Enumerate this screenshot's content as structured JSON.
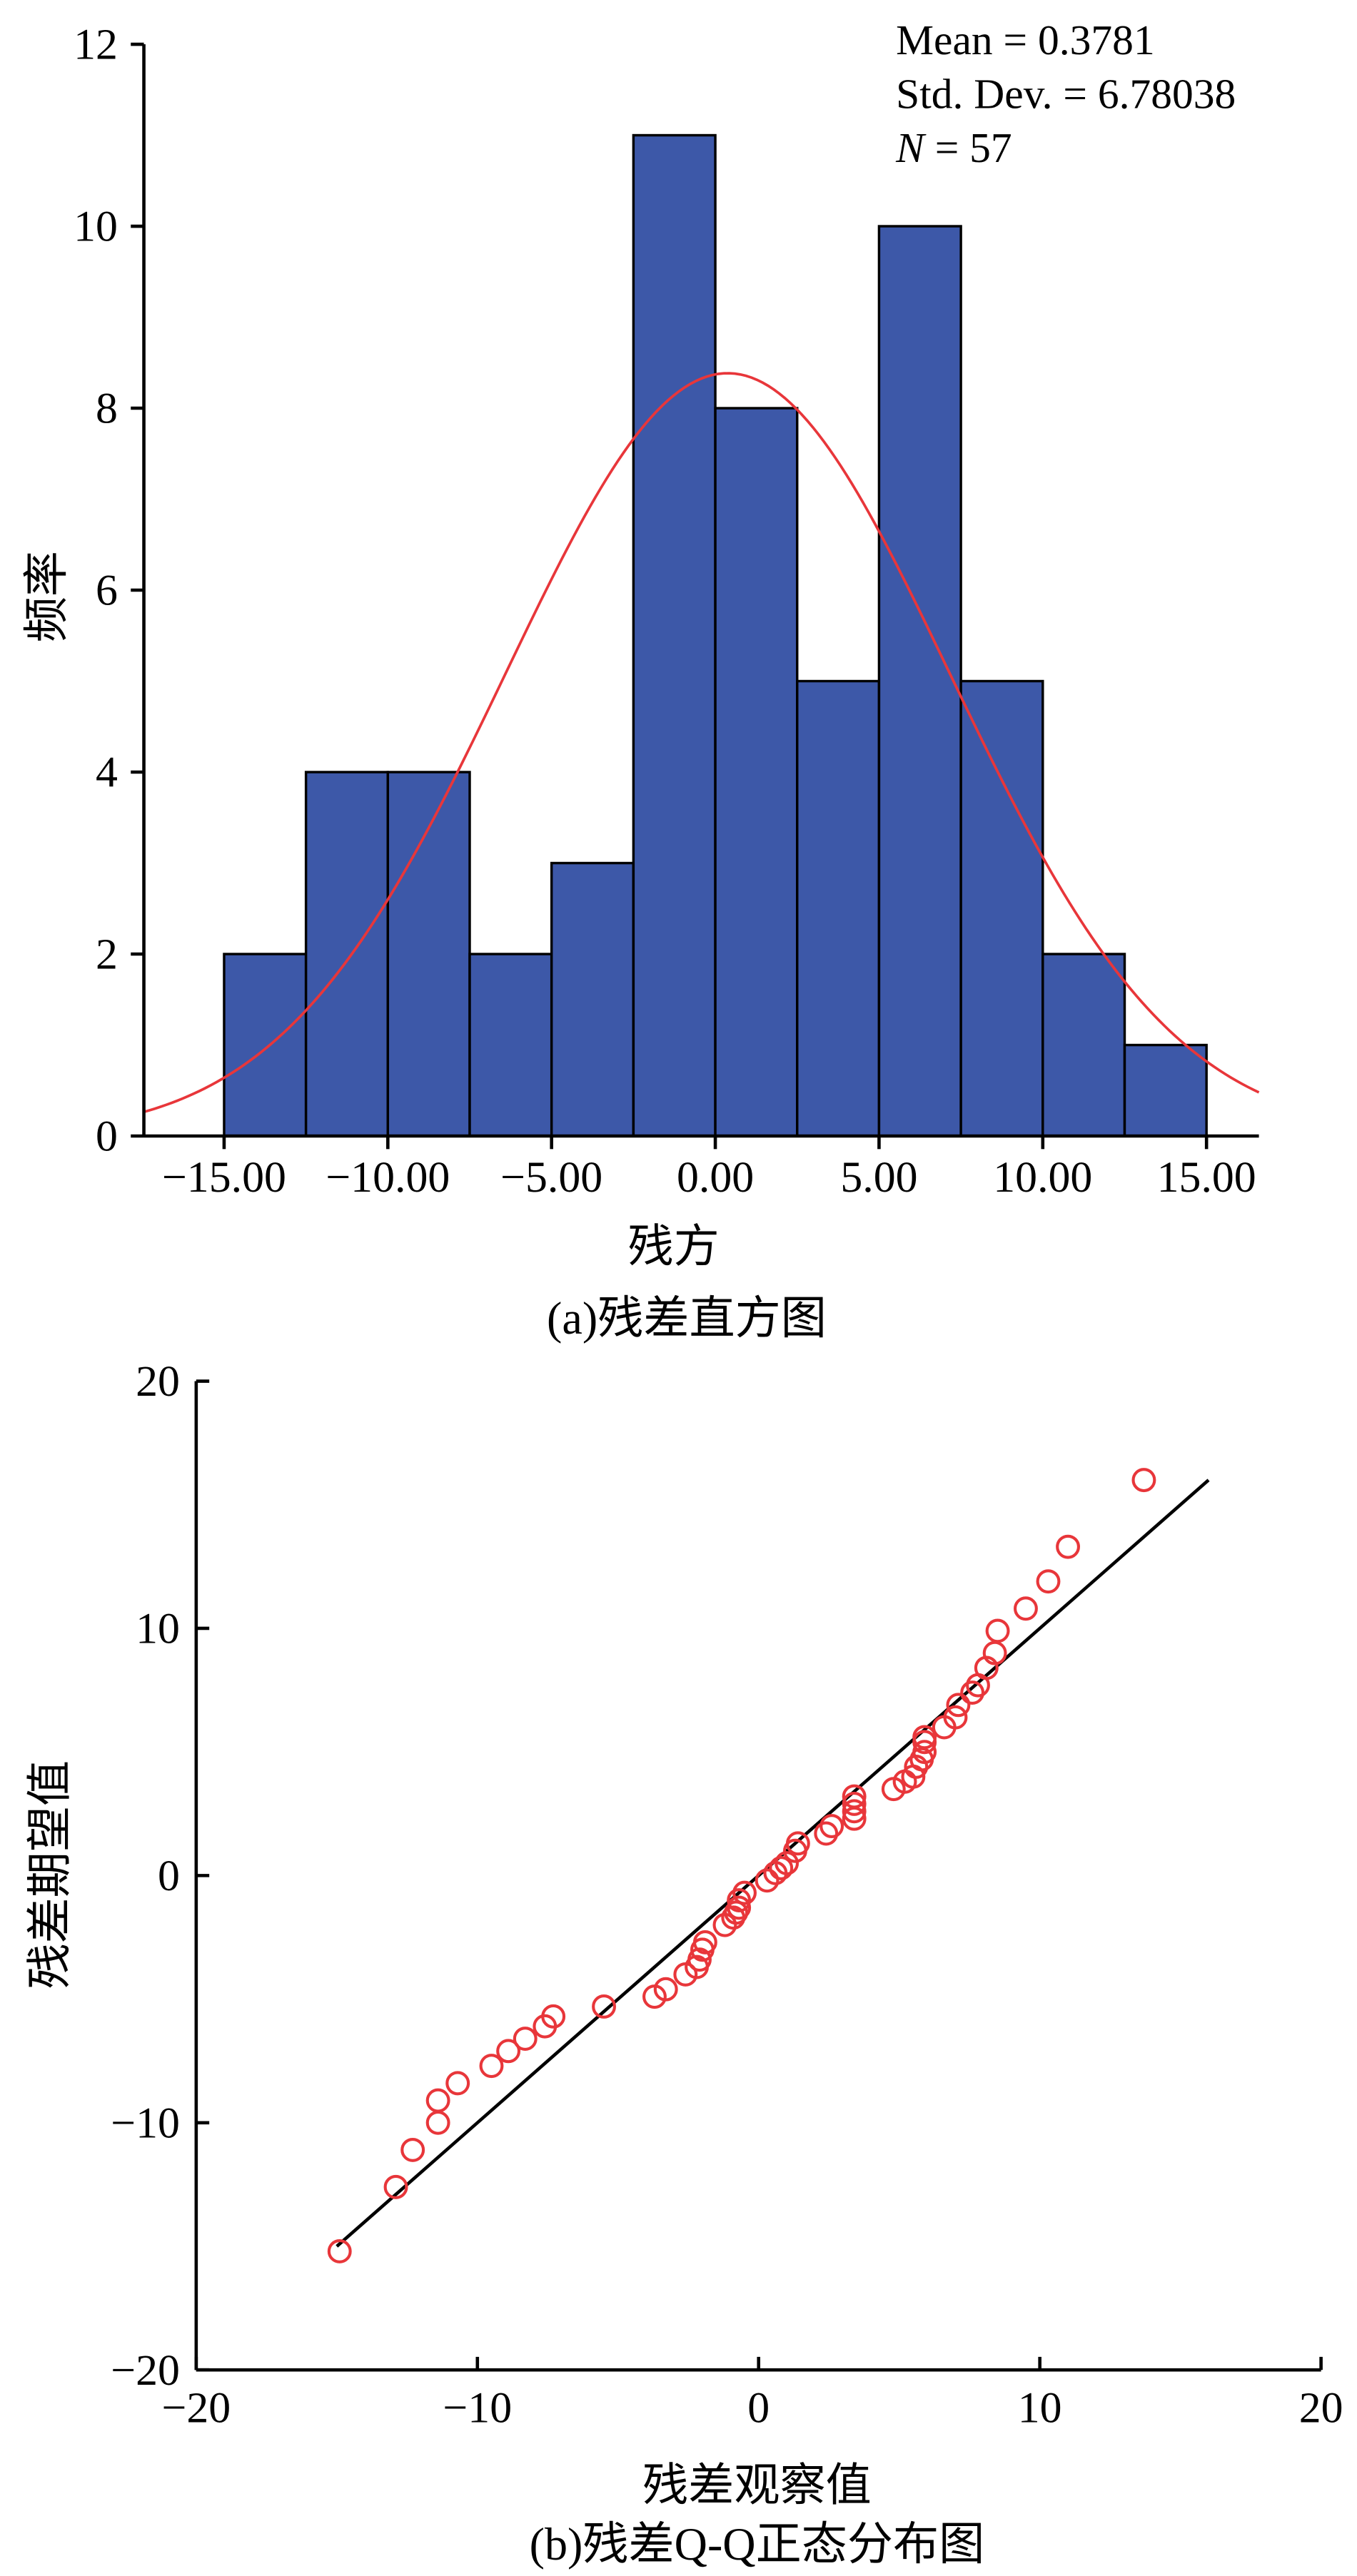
{
  "chart_data": [
    {
      "type": "bar",
      "subtype": "histogram",
      "caption": "(a)残差直方图",
      "xlabel": "残方",
      "ylabel": "频率",
      "bin_edges": [
        -15,
        -12.5,
        -10,
        -7.5,
        -5,
        -2.5,
        0,
        2.5,
        5,
        7.5,
        10,
        12.5,
        15
      ],
      "values": [
        2,
        4,
        4,
        2,
        3,
        11,
        8,
        5,
        10,
        5,
        2,
        1
      ],
      "xlim": [
        -17.45,
        16.6
      ],
      "ylim": [
        0,
        12
      ],
      "xticks": [
        -15,
        -10,
        -5,
        0,
        5,
        10,
        15
      ],
      "xtick_labels": [
        "−15.00",
        "−10.00",
        "−5.00",
        "0.00",
        "5.00",
        "10.00",
        "15.00"
      ],
      "yticks": [
        0,
        2,
        4,
        6,
        8,
        10,
        12
      ],
      "ytick_labels": [
        "0",
        "2",
        "4",
        "6",
        "8",
        "10",
        "12"
      ],
      "stats": {
        "mean_label": "Mean = 0.3781",
        "sd_label": "Std. Dev. = 6.78038",
        "n_label_italic": "N",
        "n_label_rest": " = 57"
      },
      "normal_curve": {
        "mean": 0.3781,
        "sd": 6.78038,
        "n": 57,
        "color": "#e8363a"
      },
      "bar_color": "#3d58a8",
      "grid": false
    },
    {
      "type": "scatter",
      "caption": "(b)残差Q-Q正态分布图",
      "xlabel": "残差观察值",
      "ylabel": "残差期望值",
      "xlim": [
        -20,
        20
      ],
      "ylim": [
        -20,
        20
      ],
      "xticks": [
        -20,
        -10,
        0,
        10,
        20
      ],
      "xtick_labels": [
        "−20",
        "−10",
        "0",
        "10",
        "20"
      ],
      "yticks": [
        -20,
        -10,
        0,
        10,
        20
      ],
      "ytick_labels": [
        "−20",
        "−10",
        "0",
        "10",
        "20"
      ],
      "marker_color": "#e8363a",
      "reference_line": {
        "x": [
          -15,
          16
        ],
        "y": [
          -15,
          16
        ],
        "color": "#000000"
      },
      "points": [
        [
          -14.9,
          -15.2
        ],
        [
          -12.9,
          -12.6
        ],
        [
          -12.3,
          -11.1
        ],
        [
          -11.4,
          -10.0
        ],
        [
          -11.4,
          -9.1
        ],
        [
          -10.7,
          -8.4
        ],
        [
          -9.5,
          -7.7
        ],
        [
          -8.9,
          -7.1
        ],
        [
          -8.3,
          -6.6
        ],
        [
          -7.6,
          -6.1
        ],
        [
          -7.3,
          -5.7
        ],
        [
          -5.5,
          -5.3
        ],
        [
          -3.7,
          -4.9
        ],
        [
          -3.3,
          -4.6
        ],
        [
          -2.6,
          -4.0
        ],
        [
          -2.2,
          -3.7
        ],
        [
          -2.1,
          -3.4
        ],
        [
          -2.0,
          -3.0
        ],
        [
          -1.9,
          -2.7
        ],
        [
          -1.2,
          -2.0
        ],
        [
          -0.9,
          -1.7
        ],
        [
          -0.8,
          -1.5
        ],
        [
          -0.7,
          -1.3
        ],
        [
          -0.7,
          -1.0
        ],
        [
          -0.5,
          -0.7
        ],
        [
          0.3,
          -0.2
        ],
        [
          0.6,
          0.1
        ],
        [
          0.8,
          0.3
        ],
        [
          1.0,
          0.5
        ],
        [
          1.3,
          1.0
        ],
        [
          1.4,
          1.3
        ],
        [
          2.4,
          1.7
        ],
        [
          2.6,
          2.0
        ],
        [
          3.4,
          2.3
        ],
        [
          3.4,
          2.6
        ],
        [
          3.4,
          2.9
        ],
        [
          3.4,
          3.2
        ],
        [
          4.8,
          3.5
        ],
        [
          5.2,
          3.8
        ],
        [
          5.5,
          4.0
        ],
        [
          5.6,
          4.4
        ],
        [
          5.8,
          4.7
        ],
        [
          5.9,
          5.0
        ],
        [
          5.9,
          5.4
        ],
        [
          5.9,
          5.6
        ],
        [
          6.6,
          6.0
        ],
        [
          7.0,
          6.4
        ],
        [
          7.1,
          6.9
        ],
        [
          7.6,
          7.4
        ],
        [
          7.8,
          7.7
        ],
        [
          8.1,
          8.4
        ],
        [
          8.4,
          9.0
        ],
        [
          8.5,
          9.9
        ],
        [
          9.5,
          10.8
        ],
        [
          10.3,
          11.9
        ],
        [
          11.0,
          13.3
        ],
        [
          13.7,
          16.0
        ]
      ],
      "grid": false
    }
  ]
}
